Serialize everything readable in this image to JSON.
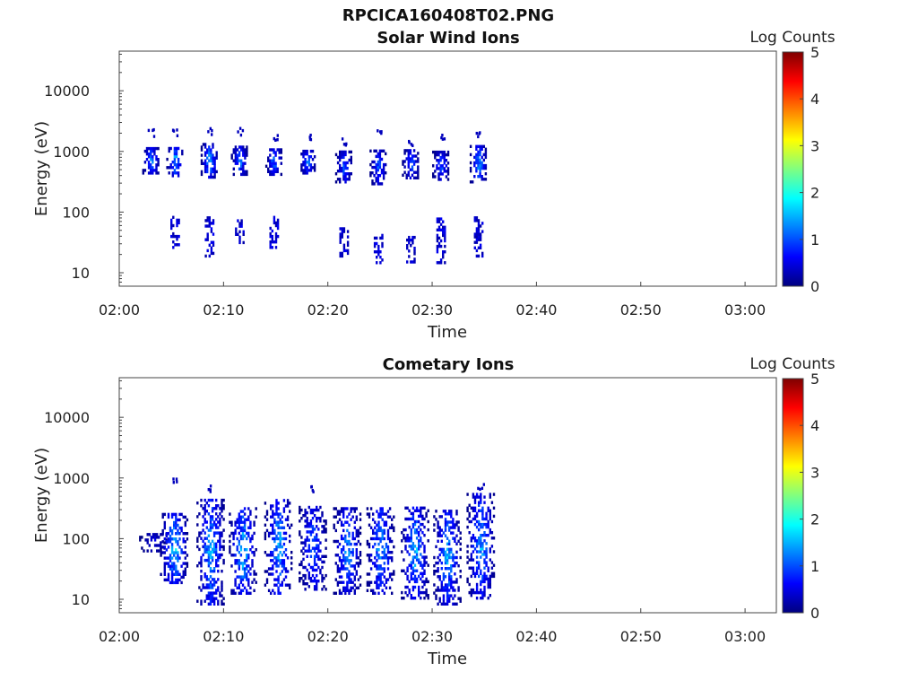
{
  "figure_title": "RPCICA160408T02.PNG",
  "colormap": [
    "#00007f",
    "#0000ff",
    "#0080ff",
    "#00ffff",
    "#80ff80",
    "#ffff00",
    "#ff8000",
    "#ff0000",
    "#7f0000"
  ],
  "chart_data": [
    {
      "type": "heatmap",
      "title": "Solar Wind Ions",
      "xlabel": "Time",
      "ylabel": "Energy (eV)",
      "x_range_minutes_after_0200": [
        0,
        63
      ],
      "x_tick_minutes": [
        0,
        10,
        20,
        30,
        40,
        50,
        60
      ],
      "x_tick_labels": [
        "02:00",
        "02:10",
        "02:20",
        "02:30",
        "02:40",
        "02:50",
        "03:00"
      ],
      "y_scale": "log",
      "ylim": [
        6,
        45000
      ],
      "y_tick_values": [
        10,
        100,
        1000,
        10000
      ],
      "y_tick_labels": [
        "10",
        "100",
        "1000",
        "10000"
      ],
      "colorbar_label": "Log Counts",
      "colorbar_range": [
        0,
        5
      ],
      "colorbar_tick_labels": [
        "0",
        "1",
        "2",
        "3",
        "4",
        "5"
      ],
      "bursts": [
        {
          "t": 3.0,
          "main": [
            420,
            1100
          ],
          "mainPeak": 1.5,
          "top": 1900,
          "low": null
        },
        {
          "t": 5.3,
          "main": [
            380,
            1150
          ],
          "mainPeak": 1.8,
          "top": 1900,
          "low": [
            25,
            80
          ]
        },
        {
          "t": 8.6,
          "main": [
            360,
            1250
          ],
          "mainPeak": 1.7,
          "top": 2000,
          "low": [
            18,
            85
          ]
        },
        {
          "t": 11.5,
          "main": [
            400,
            1150
          ],
          "mainPeak": 1.4,
          "top": 2000,
          "low": [
            30,
            75
          ]
        },
        {
          "t": 14.8,
          "main": [
            400,
            1100
          ],
          "mainPeak": 1.3,
          "top": 1700,
          "low": [
            25,
            80
          ]
        },
        {
          "t": 18.0,
          "main": [
            420,
            1050
          ],
          "mainPeak": 1.3,
          "top": 1700,
          "low": null
        },
        {
          "t": 21.5,
          "main": [
            300,
            950
          ],
          "mainPeak": 1.2,
          "top": 1400,
          "low": [
            18,
            55
          ]
        },
        {
          "t": 24.8,
          "main": [
            280,
            1000
          ],
          "mainPeak": 1.2,
          "top": 2000,
          "low": [
            14,
            40
          ]
        },
        {
          "t": 27.9,
          "main": [
            350,
            1050
          ],
          "mainPeak": 1.2,
          "top": 1400,
          "low": [
            13,
            40
          ]
        },
        {
          "t": 30.8,
          "main": [
            330,
            950
          ],
          "mainPeak": 1.2,
          "top": 1700,
          "low": [
            14,
            80
          ]
        },
        {
          "t": 34.4,
          "main": [
            300,
            1200
          ],
          "mainPeak": 1.5,
          "top": 1900,
          "low": [
            18,
            85
          ]
        }
      ]
    },
    {
      "type": "heatmap",
      "title": "Cometary Ions",
      "xlabel": "Time",
      "ylabel": "Energy (eV)",
      "x_range_minutes_after_0200": [
        0,
        63
      ],
      "x_tick_minutes": [
        0,
        10,
        20,
        30,
        40,
        50,
        60
      ],
      "x_tick_labels": [
        "02:00",
        "02:10",
        "02:20",
        "02:30",
        "02:40",
        "02:50",
        "03:00"
      ],
      "y_scale": "log",
      "ylim": [
        6,
        45000
      ],
      "y_tick_values": [
        10,
        100,
        1000,
        10000
      ],
      "y_tick_labels": [
        "10",
        "100",
        "1000",
        "10000"
      ],
      "colorbar_label": "Log Counts",
      "colorbar_range": [
        0,
        5
      ],
      "colorbar_tick_labels": [
        "0",
        "1",
        "2",
        "3",
        "4",
        "5"
      ],
      "bursts": [
        {
          "t": 3.2,
          "main": [
            60,
            120
          ],
          "mainPeak": 0.6,
          "top": null
        },
        {
          "t": 5.2,
          "main": [
            18,
            250
          ],
          "mainPeak": 1.9,
          "top": 800
        },
        {
          "t": 8.7,
          "main": [
            8,
            450
          ],
          "mainPeak": 1.7,
          "top": 650
        },
        {
          "t": 11.8,
          "main": [
            12,
            300
          ],
          "mainPeak": 1.8,
          "top": null
        },
        {
          "t": 15.2,
          "main": [
            12,
            450
          ],
          "mainPeak": 1.7,
          "top": null
        },
        {
          "t": 18.5,
          "main": [
            14,
            330
          ],
          "mainPeak": 1.3,
          "top": 650
        },
        {
          "t": 21.8,
          "main": [
            12,
            320
          ],
          "mainPeak": 1.5,
          "top": null
        },
        {
          "t": 25.0,
          "main": [
            12,
            330
          ],
          "mainPeak": 1.6,
          "top": null
        },
        {
          "t": 28.3,
          "main": [
            10,
            330
          ],
          "mainPeak": 1.7,
          "top": null
        },
        {
          "t": 31.4,
          "main": [
            8,
            300
          ],
          "mainPeak": 1.6,
          "top": null
        },
        {
          "t": 34.6,
          "main": [
            10,
            550
          ],
          "mainPeak": 1.6,
          "top": 650
        }
      ]
    }
  ]
}
